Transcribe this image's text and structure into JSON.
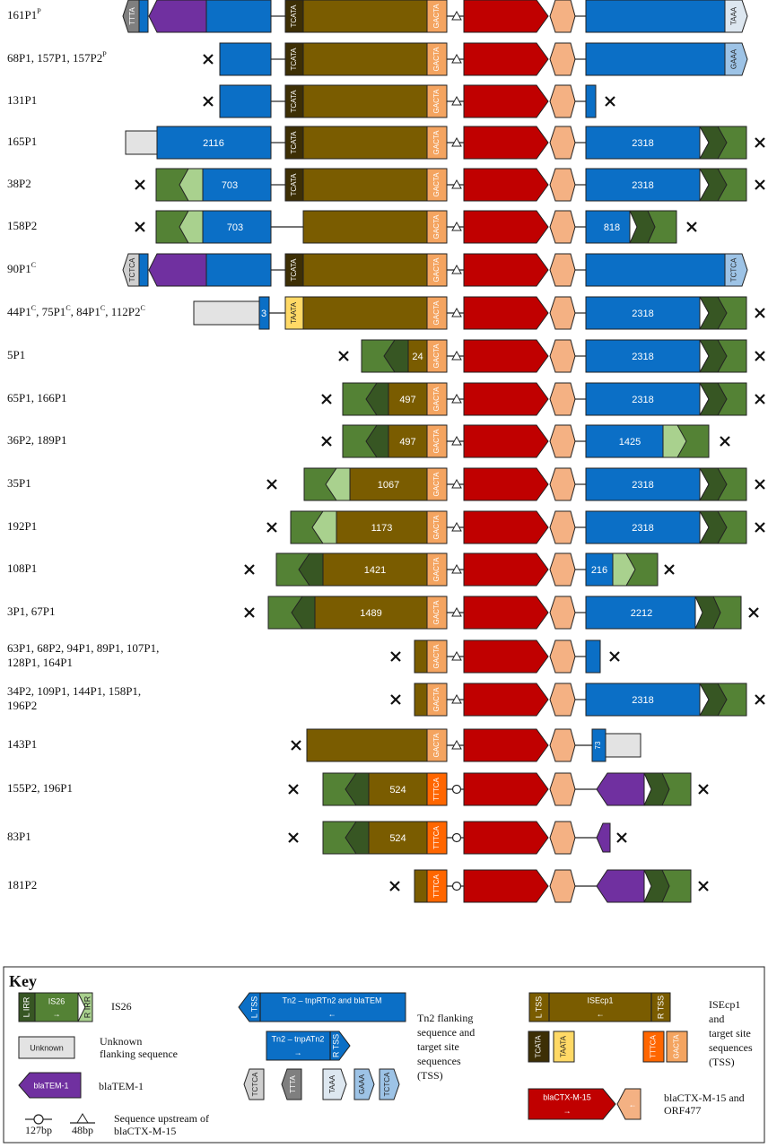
{
  "colors": {
    "is26_blue": "#0b6fc6",
    "isecp1_brown": "#7a5c00",
    "ctx_red": "#c00000",
    "orf_peach": "#f4b183",
    "tem_purple": "#7030a0",
    "is26_green": "#548235",
    "is26_dark": "#375623",
    "is26_light": "#a9d18e",
    "unknown_grey": "#e3e3e3",
    "tss_gacta": "#f4a460",
    "tss_tttca": "#ff6600",
    "tss_tcata": "#3d2f05",
    "tss_taata": "#ffd966",
    "tss_grey_dark": "#7f7f7f",
    "tss_grey_light": "#cfcfcf",
    "tss_white": "#dde7f0",
    "tss_lightblue": "#9dc3e6"
  },
  "rows": [
    {
      "label": "161P1",
      "sup": "P"
    },
    {
      "label": "68P1, 157P1, 157P2",
      "sup": "P"
    },
    {
      "label": "131P1",
      "sup": ""
    },
    {
      "label": "165P1",
      "sup": ""
    },
    {
      "label": "38P2",
      "sup": ""
    },
    {
      "label": "158P2",
      "sup": ""
    },
    {
      "label": "90P1",
      "sup": "C"
    },
    {
      "label": "44P1",
      "sup": "C",
      "rest": [
        [
          ", 75P1",
          "C"
        ],
        [
          ", 84P1",
          "C"
        ],
        [
          ", 112P2",
          "C"
        ]
      ]
    },
    {
      "label": "5P1",
      "sup": ""
    },
    {
      "label": "65P1, 166P1",
      "sup": ""
    },
    {
      "label": "36P2, 189P1",
      "sup": ""
    },
    {
      "label": "35P1",
      "sup": ""
    },
    {
      "label": "192P1",
      "sup": ""
    },
    {
      "label": "108P1",
      "sup": ""
    },
    {
      "label": "3P1, 67P1",
      "sup": ""
    },
    {
      "label": "63P1, 68P2, 94P1, 89P1, 107P1,",
      "line2": "128P1, 164P1",
      "sup": ""
    },
    {
      "label": "34P2, 109P1, 144P1, 158P1,",
      "line2": "196P2",
      "sup": ""
    },
    {
      "label": "143P1",
      "sup": ""
    },
    {
      "label": "155P2, 196P1",
      "sup": ""
    },
    {
      "label": "83P1",
      "sup": ""
    },
    {
      "label": "181P2",
      "sup": ""
    }
  ],
  "segment_numbers": [
    "2116",
    "2318",
    "703",
    "2318",
    "703",
    "818",
    "3",
    "2318",
    "24",
    "2318",
    "497",
    "2318",
    "497",
    "1425",
    "1067",
    "2318",
    "1173",
    "2318",
    "1421",
    "216",
    "1489",
    "2212",
    "2318",
    "73",
    "524",
    "524"
  ],
  "tss_labels": [
    "TTTA",
    "TAAA",
    "TCATA",
    "GACTA",
    "GAAA",
    "TCTCA",
    "TAATA",
    "TTTCA"
  ],
  "key": {
    "title": "Key",
    "is26_label": "IS26",
    "is26_lirr": "L IRR",
    "is26_rirr": "R IRR",
    "is26_text": "IS26",
    "unknown_box": "Unknown",
    "unknown_desc_1": "Unknown",
    "unknown_desc_2": "flanking sequence",
    "tem_box": "blaTEM-1",
    "tem_desc": "blaTEM-1",
    "seq_127": "127bp",
    "seq_48": "48bp",
    "seq_desc_1": "Sequence upstream of",
    "seq_desc_2": "blaCTX-M-15",
    "tn2_ltss": "L TSS",
    "tn2_text1": "Tn2 – tnpRTn2 and blaTEM",
    "tn2_text2": "Tn2 – tnpATn2",
    "tn2_rtss": "R TSS",
    "tn2_tss": [
      "TCTCA",
      "TTTA",
      "TAAA",
      "GAAA",
      "TCTCA"
    ],
    "tn2_desc": [
      "Tn2 flanking",
      "sequence and",
      "target site",
      "sequences",
      "(TSS)"
    ],
    "isecp_ltss": "L TSS",
    "isecp_text": "ISEcp1",
    "isecp_rtss": "R TSS",
    "isecp_tss": [
      "TCATA",
      "TAATA",
      "TTTCA",
      "GACTA"
    ],
    "isecp_desc": [
      "ISEcp1",
      "and",
      "target site",
      "sequences",
      "(TSS)"
    ],
    "ctx_box": "blaCTX-M-15",
    "ctx_desc_1": "blaCTX-M-15 and",
    "ctx_desc_2": "ORF477"
  }
}
